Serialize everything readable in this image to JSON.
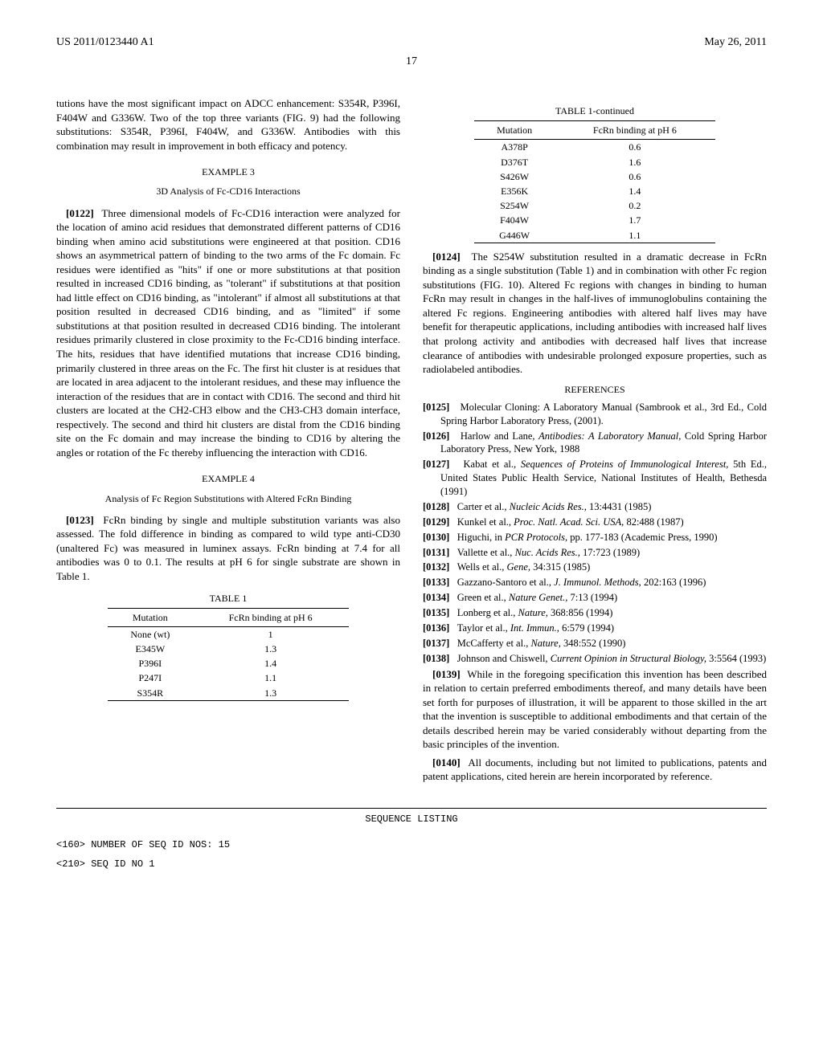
{
  "header": {
    "pubno": "US 2011/0123440 A1",
    "date": "May 26, 2011",
    "pagenum": "17"
  },
  "left_col": {
    "intro_para": "tutions have the most significant impact on ADCC enhancement: S354R, P396I, F404W and G336W. Two of the top three variants (FIG. 9) had the following substitutions: S354R, P396I, F404W, and G336W. Antibodies with this combination may result in improvement in both efficacy and potency.",
    "example3_heading": "EXAMPLE 3",
    "example3_sub": "3D Analysis of Fc-CD16 Interactions",
    "p0122_num": "[0122]",
    "p0122": "Three dimensional models of Fc-CD16 interaction were analyzed for the location of amino acid residues that demonstrated different patterns of CD16 binding when amino acid substitutions were engineered at that position. CD16 shows an asymmetrical pattern of binding to the two arms of the Fc domain. Fc residues were identified as \"hits\" if one or more substitutions at that position resulted in increased CD16 binding, as \"tolerant\" if substitutions at that position had little effect on CD16 binding, as \"intolerant\" if almost all substitutions at that position resulted in decreased CD16 binding, and as \"limited\" if some substitutions at that position resulted in decreased CD16 binding. The intolerant residues primarily clustered in close proximity to the Fc-CD16 binding interface. The hits, residues that have identified mutations that increase CD16 binding, primarily clustered in three areas on the Fc. The first hit cluster is at residues that are located in area adjacent to the intolerant residues, and these may influence the interaction of the residues that are in contact with CD16. The second and third hit clusters are located at the CH2-CH3 elbow and the CH3-CH3 domain interface, respectively. The second and third hit clusters are distal from the CD16 binding site on the Fc domain and may increase the binding to CD16 by altering the angles or rotation of the Fc thereby influencing the interaction with CD16.",
    "example4_heading": "EXAMPLE 4",
    "example4_sub": "Analysis of Fc Region Substitutions with Altered FcRn Binding",
    "p0123_num": "[0123]",
    "p0123": "FcRn binding by single and multiple substitution variants was also assessed. The fold difference in binding as compared to wild type anti-CD30 (unaltered Fc) was measured in luminex assays. FcRn binding at 7.4 for all antibodies was 0 to 0.1. The results at pH 6 for single substrate are shown in Table 1."
  },
  "table1": {
    "caption": "TABLE 1",
    "col1": "Mutation",
    "col2": "FcRn binding at pH 6",
    "rows": [
      [
        "None (wt)",
        "1"
      ],
      [
        "E345W",
        "1.3"
      ],
      [
        "P396I",
        "1.4"
      ],
      [
        "P247I",
        "1.1"
      ],
      [
        "S354R",
        "1.3"
      ]
    ]
  },
  "table1cont": {
    "caption": "TABLE 1-continued",
    "col1": "Mutation",
    "col2": "FcRn binding at pH 6",
    "rows": [
      [
        "A378P",
        "0.6"
      ],
      [
        "D376T",
        "1.6"
      ],
      [
        "S426W",
        "0.6"
      ],
      [
        "E356K",
        "1.4"
      ],
      [
        "S254W",
        "0.2"
      ],
      [
        "F404W",
        "1.7"
      ],
      [
        "G446W",
        "1.1"
      ]
    ]
  },
  "right_col": {
    "p0124_num": "[0124]",
    "p0124": "The S254W substitution resulted in a dramatic decrease in FcRn binding as a single substitution (Table 1) and in combination with other Fc region substitutions (FIG. 10). Altered Fc regions with changes in binding to human FcRn may result in changes in the half-lives of immunoglobulins containing the altered Fc regions. Engineering antibodies with altered half lives may have benefit for therapeutic applications, including antibodies with increased half lives that prolong activity and antibodies with decreased half lives that increase clearance of antibodies with undesirable prolonged exposure properties, such as radiolabeled antibodies.",
    "ref_heading": "REFERENCES",
    "refs": [
      {
        "num": "[0125]",
        "txt": "Molecular Cloning: A Laboratory Manual (Sambrook et al., 3rd Ed., Cold Spring Harbor Laboratory Press, (2001)."
      },
      {
        "num": "[0126]",
        "txt": "Harlow and Lane, ",
        "it": "Antibodies: A Laboratory Manual,",
        "tail": " Cold Spring Harbor Laboratory Press, New York, 1988"
      },
      {
        "num": "[0127]",
        "txt": "Kabat et al., ",
        "it": "Sequences of Proteins of Immunological Interest,",
        "tail": " 5th Ed., United States Public Health Service, National Institutes of Health, Bethesda (1991)"
      },
      {
        "num": "[0128]",
        "txt": "Carter et al., ",
        "it": "Nucleic Acids Res.,",
        "tail": " 13:4431 (1985)"
      },
      {
        "num": "[0129]",
        "txt": "Kunkel et al., ",
        "it": "Proc. Natl. Acad. Sci. USA,",
        "tail": " 82:488 (1987)"
      },
      {
        "num": "[0130]",
        "txt": "Higuchi, in ",
        "it": "PCR Protocols,",
        "tail": " pp. 177-183 (Academic Press, 1990)"
      },
      {
        "num": "[0131]",
        "txt": "Vallette et al., ",
        "it": "Nuc. Acids Res.,",
        "tail": " 17:723 (1989)"
      },
      {
        "num": "[0132]",
        "txt": "Wells et al., ",
        "it": "Gene,",
        "tail": " 34:315 (1985)"
      },
      {
        "num": "[0133]",
        "txt": "Gazzano-Santoro et al., ",
        "it": "J. Immunol. Methods,",
        "tail": " 202:163 (1996)"
      },
      {
        "num": "[0134]",
        "txt": "Green et al., ",
        "it": "Nature Genet.,",
        "tail": " 7:13 (1994)"
      },
      {
        "num": "[0135]",
        "txt": "Lonberg et al., ",
        "it": "Nature,",
        "tail": " 368:856 (1994)"
      },
      {
        "num": "[0136]",
        "txt": "Taylor et al., ",
        "it": "Int. Immun.,",
        "tail": " 6:579 (1994)"
      },
      {
        "num": "[0137]",
        "txt": "McCafferty et al., ",
        "it": "Nature,",
        "tail": " 348:552 (1990)"
      },
      {
        "num": "[0138]",
        "txt": "Johnson and Chiswell, ",
        "it": "Current Opinion in Structural Biology,",
        "tail": " 3:5564 (1993)"
      }
    ],
    "p0139_num": "[0139]",
    "p0139": "While in the foregoing specification this invention has been described in relation to certain preferred embodiments thereof, and many details have been set forth for purposes of illustration, it will be apparent to those skilled in the art that the invention is susceptible to additional embodiments and that certain of the details described herein may be varied considerably without departing from the basic principles of the invention.",
    "p0140_num": "[0140]",
    "p0140": "All documents, including but not limited to publications, patents and patent applications, cited herein are herein incorporated by reference."
  },
  "sequence": {
    "title": "SEQUENCE LISTING",
    "line1": "<160> NUMBER OF SEQ ID NOS: 15",
    "line2": "<210> SEQ ID NO 1"
  }
}
